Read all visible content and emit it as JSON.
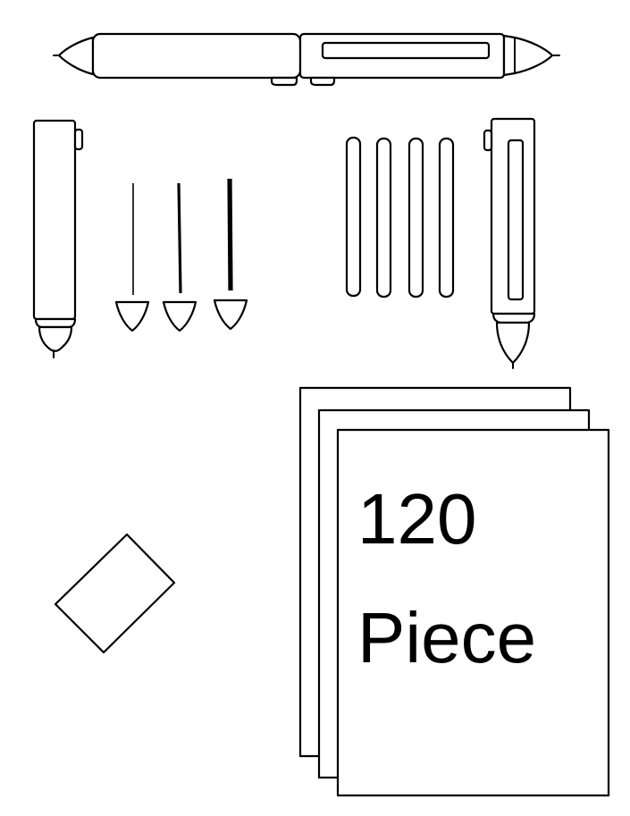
{
  "paper_label": {
    "line1": "120",
    "line2": "Piece"
  },
  "colors": {
    "ink": "#000000",
    "background": "#ffffff"
  },
  "icons": [
    "pen-icon",
    "pen-barrel-left-icon",
    "refill-thin-icon",
    "refill-medium-icon",
    "refill-thick-icon",
    "lead-stick-icon",
    "pen-barrel-right-icon",
    "eraser-icon",
    "paper-stack-icon"
  ]
}
